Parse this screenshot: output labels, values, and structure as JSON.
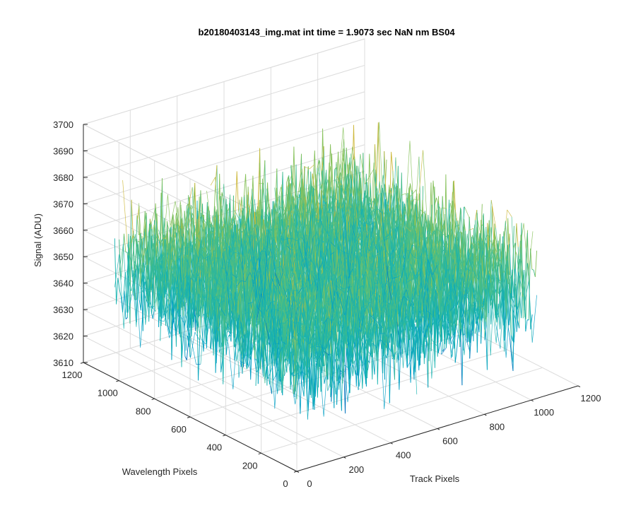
{
  "chart_data": {
    "type": "surface3d",
    "title": "b20180403143_img.mat int time = 1.9073 sec  NaN nm BS04",
    "xlabel": "Track Pixels",
    "ylabel": "Wavelength Pixels",
    "zlabel": "Signal (ADU)",
    "xlim": [
      0,
      1200
    ],
    "ylim": [
      0,
      1200
    ],
    "zlim": [
      3610,
      3700
    ],
    "x_ticks": [
      0,
      200,
      400,
      600,
      800,
      1000,
      1200
    ],
    "y_ticks": [
      0,
      200,
      400,
      600,
      800,
      1000,
      1200
    ],
    "z_ticks": [
      3610,
      3620,
      3630,
      3640,
      3650,
      3660,
      3670,
      3680,
      3690,
      3700
    ],
    "x_extent": [
      0,
      1024
    ],
    "y_extent": [
      0,
      1024
    ],
    "z_mean": 3652,
    "z_noise_range": [
      3622,
      3690
    ],
    "colormap": [
      "#0072bd",
      "#009ec4",
      "#17b3b0",
      "#43bc8a",
      "#86c15a",
      "#cdb83b",
      "#f0c540"
    ],
    "grid": true
  }
}
